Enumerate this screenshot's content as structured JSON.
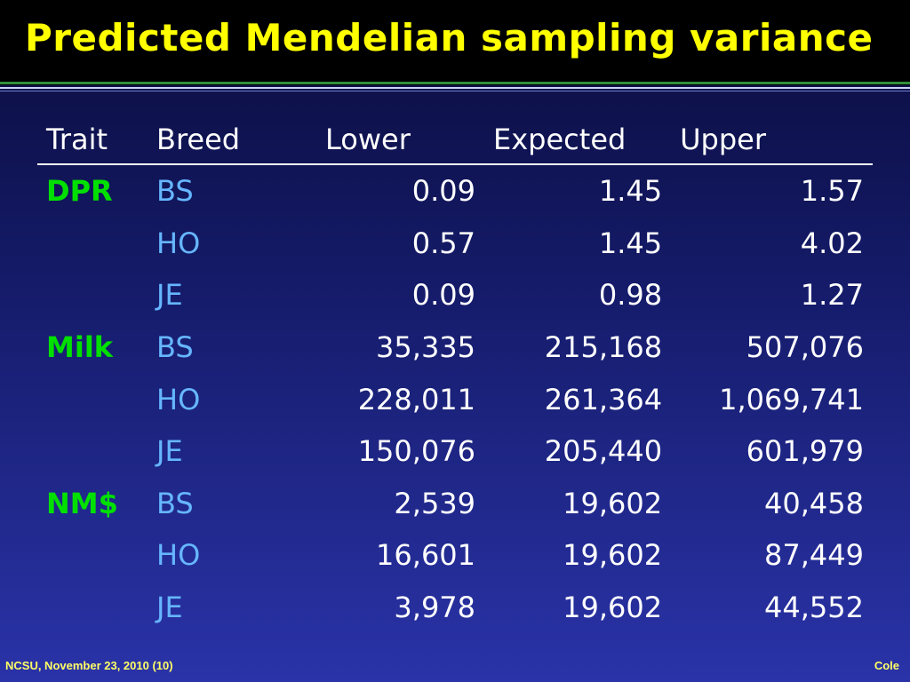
{
  "title": "Predicted Mendelian sampling variance",
  "table": {
    "headers": [
      "Trait",
      "Breed",
      "Lower",
      "Expected",
      "Upper"
    ],
    "rows": [
      [
        "DPR",
        "BS",
        "0.09",
        "1.45",
        "1.57"
      ],
      [
        "",
        "HO",
        "0.57",
        "1.45",
        "4.02"
      ],
      [
        "",
        "JE",
        "0.09",
        "0.98",
        "1.27"
      ],
      [
        "Milk",
        "BS",
        "35,335",
        "215,168",
        "507,076"
      ],
      [
        "",
        "HO",
        "228,011",
        "261,364",
        "1,069,741"
      ],
      [
        "",
        "JE",
        "150,076",
        "205,440",
        "601,979"
      ],
      [
        "NM$",
        "BS",
        "2,539",
        "19,602",
        "40,458"
      ],
      [
        "",
        "HO",
        "16,601",
        "19,602",
        "87,449"
      ],
      [
        "",
        "JE",
        "3,978",
        "19,602",
        "44,552"
      ]
    ]
  },
  "footer": {
    "left": "NCSU, November 23, 2010 (10)",
    "right": "Cole"
  },
  "colors": {
    "title": "#ffff00",
    "trait": "#00e000",
    "breed": "#66b6ff",
    "values": "#ffffff",
    "footer": "#ffff66"
  }
}
